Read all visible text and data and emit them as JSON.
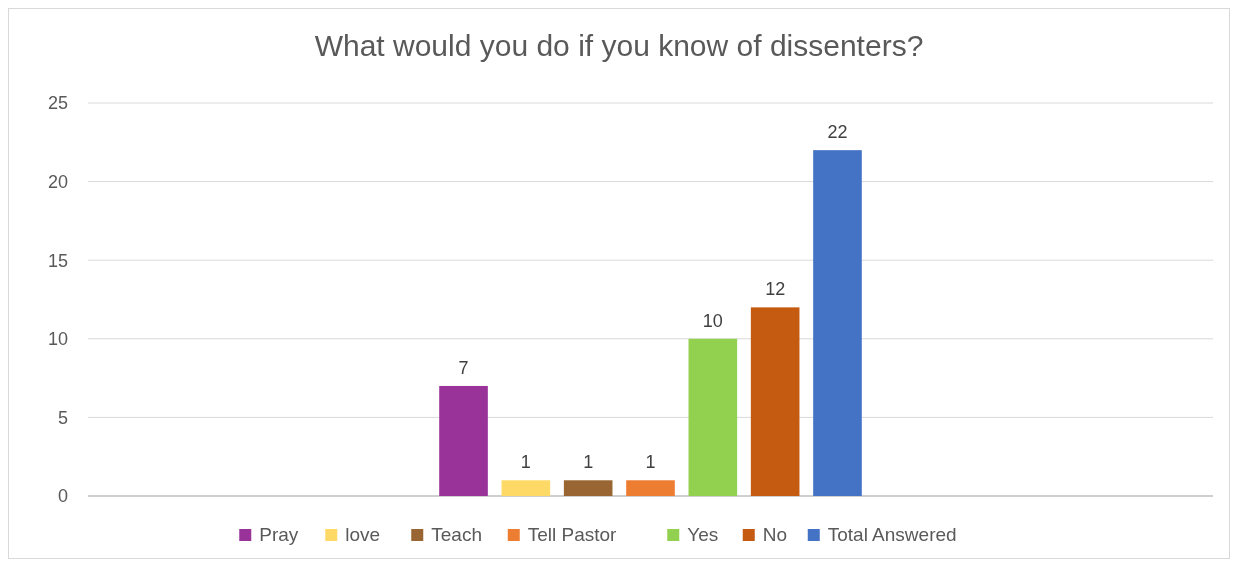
{
  "chart_data": {
    "type": "bar",
    "title": "What would you do if you know of dissenters?",
    "categories": [
      null
    ],
    "series": [
      {
        "name": "Pray",
        "color": "#993399",
        "values": [
          7
        ]
      },
      {
        "name": "love",
        "color": "#ffd966",
        "values": [
          1
        ]
      },
      {
        "name": "Teach",
        "color": "#996633",
        "values": [
          1
        ]
      },
      {
        "name": "Tell Pastor",
        "color": "#ed7d31",
        "values": [
          1
        ]
      },
      {
        "name": "Yes",
        "color": "#92d050",
        "values": [
          10
        ]
      },
      {
        "name": "No",
        "color": "#c55a11",
        "values": [
          12
        ]
      },
      {
        "name": "Total Answered",
        "color": "#4472c4",
        "values": [
          22
        ]
      }
    ],
    "ylim": [
      0,
      25
    ],
    "yticks": [
      0,
      5,
      10,
      15,
      20,
      25
    ],
    "grid": "y",
    "legend": "bottom",
    "data_labels": true
  }
}
